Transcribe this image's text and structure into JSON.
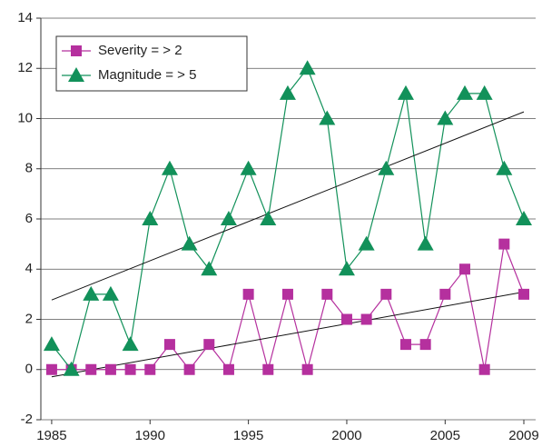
{
  "chart_data": {
    "type": "line",
    "x": [
      1985,
      1986,
      1987,
      1988,
      1989,
      1990,
      1991,
      1992,
      1993,
      1994,
      1995,
      1996,
      1997,
      1998,
      1999,
      2000,
      2001,
      2002,
      2003,
      2004,
      2005,
      2006,
      2007,
      2008,
      2009
    ],
    "series": [
      {
        "name": "Severity = > 2",
        "color": "#b5309e",
        "marker": "square",
        "values": [
          0,
          0,
          0,
          0,
          0,
          0,
          1,
          0,
          1,
          0,
          3,
          0,
          3,
          0,
          3,
          2,
          2,
          3,
          1,
          1,
          3,
          4,
          0,
          5,
          3
        ]
      },
      {
        "name": "Magnitude = > 5",
        "color": "#12915a",
        "marker": "triangle",
        "values": [
          1,
          0,
          3,
          3,
          1,
          6,
          8,
          5,
          4,
          6,
          8,
          6,
          11,
          12,
          10,
          4,
          5,
          8,
          11,
          5,
          10,
          11,
          11,
          8,
          6
        ]
      }
    ],
    "xlim": [
      1984.45,
      2009.6
    ],
    "xticks": [
      1985,
      1990,
      1995,
      2000,
      2005,
      2009
    ],
    "ylim": [
      -2,
      14
    ],
    "yticks": [
      -2,
      0,
      2,
      4,
      6,
      8,
      10,
      12,
      14
    ],
    "grid": true,
    "trend_lines": true,
    "legend": "upper-left"
  }
}
